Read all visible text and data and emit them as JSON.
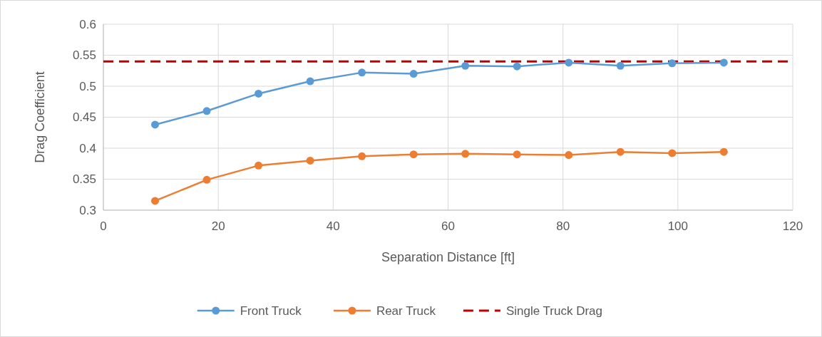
{
  "chart_data": {
    "type": "line",
    "xlabel": "Separation Distance [ft]",
    "ylabel": "Drag Coefficient",
    "xlim": [
      0,
      120
    ],
    "xticks": [
      0,
      20,
      40,
      60,
      80,
      100,
      120
    ],
    "ylim": [
      0.3,
      0.6
    ],
    "yticks": [
      0.3,
      0.35,
      0.4,
      0.45,
      0.5,
      0.55,
      0.6
    ],
    "x": [
      9,
      18,
      27,
      36,
      45,
      54,
      63,
      72,
      81,
      90,
      99,
      108
    ],
    "series": [
      {
        "name": "Front Truck",
        "color": "#5b9bd5",
        "values": [
          0.438,
          0.46,
          0.488,
          0.508,
          0.522,
          0.52,
          0.533,
          0.532,
          0.538,
          0.533,
          0.537,
          0.538
        ]
      },
      {
        "name": "Rear Truck",
        "color": "#ed7d31",
        "values": [
          0.315,
          0.349,
          0.372,
          0.38,
          0.387,
          0.39,
          0.391,
          0.39,
          0.389,
          0.394,
          0.392,
          0.394
        ]
      }
    ],
    "ref_lines": [
      {
        "axis": "y",
        "value": 0.54,
        "label": "Single Truck Drag",
        "color": "#c00000",
        "line_style": "dashed"
      }
    ],
    "grid": true,
    "legend": "bottom",
    "marker": "circle",
    "line_style": "solid"
  }
}
